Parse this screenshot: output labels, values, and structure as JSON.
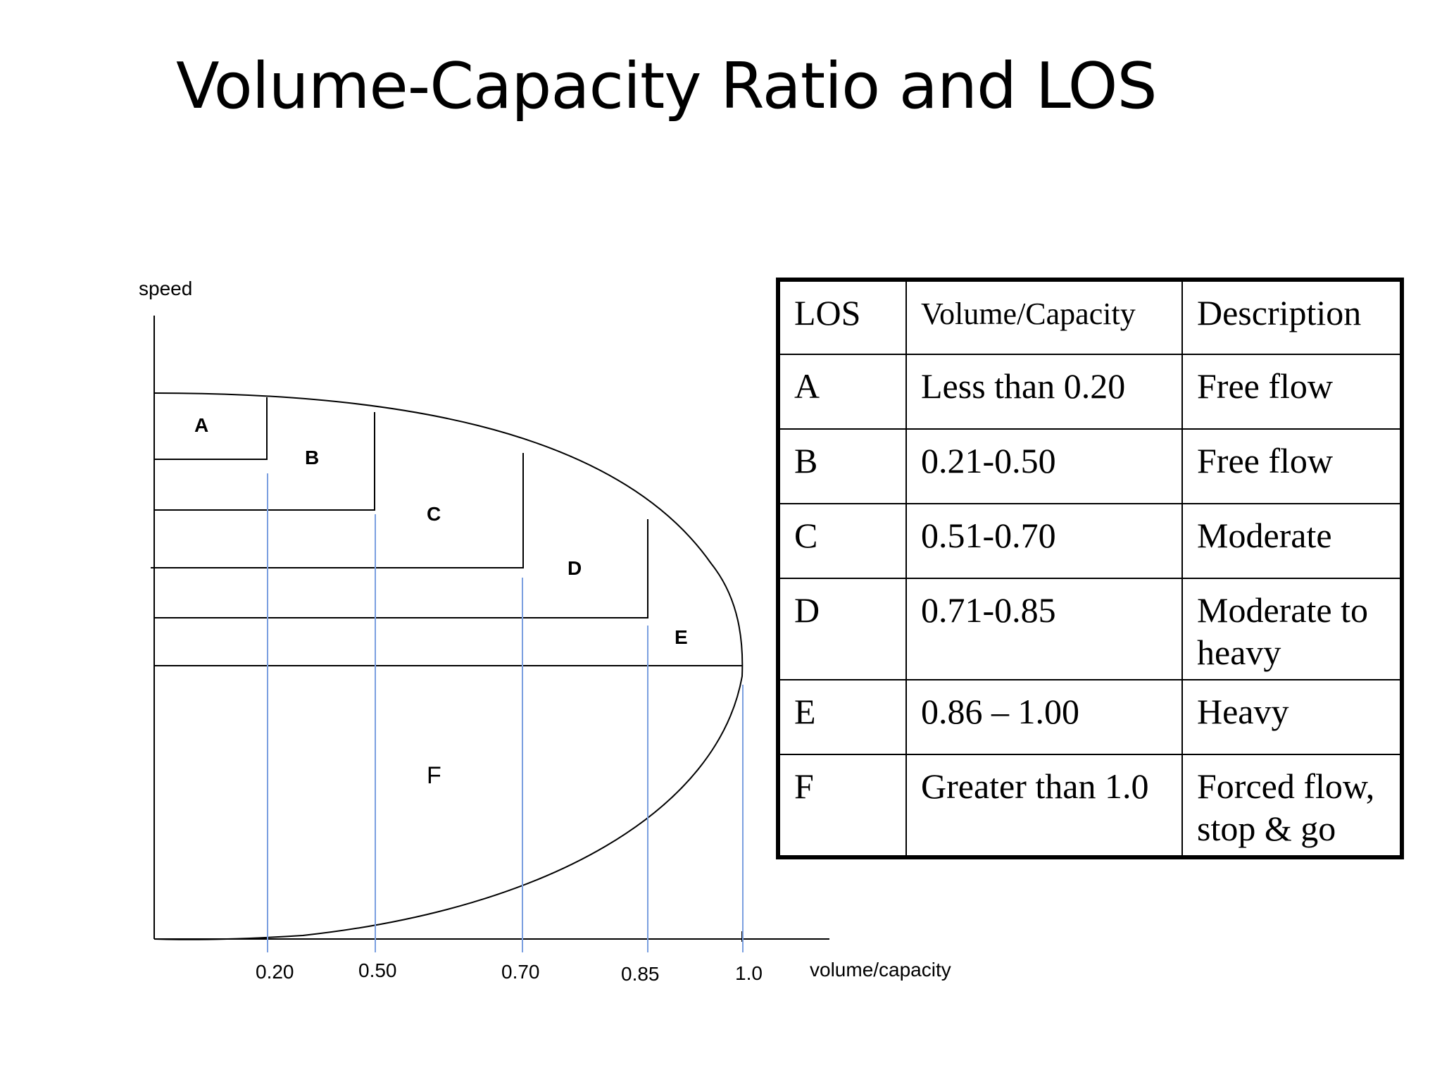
{
  "title": "Volume-Capacity Ratio and LOS",
  "diagram": {
    "y_axis_label": "speed",
    "x_axis_label": "volume/capacity",
    "tick_labels": [
      "0.20",
      "0.50",
      "0.70",
      "0.85",
      "1.0"
    ],
    "region_labels": {
      "A": "A",
      "B": "B",
      "C": "C",
      "D": "D",
      "E": "E",
      "F": "F"
    },
    "colors": {
      "curve": "#000000",
      "guide_lines": "#7b9fe0"
    }
  },
  "table": {
    "headers": {
      "los": "LOS",
      "vc": "Volume/Capacity",
      "desc": "Description"
    },
    "rows": [
      {
        "los": "A",
        "vc": "Less than 0.20",
        "desc": "Free flow"
      },
      {
        "los": "B",
        "vc": "0.21-0.50",
        "desc": "Free flow"
      },
      {
        "los": "C",
        "vc": "0.51-0.70",
        "desc": "Moderate"
      },
      {
        "los": "D",
        "vc": "0.71-0.85",
        "desc": "Moderate to heavy"
      },
      {
        "los": "E",
        "vc": "0.86 – 1.00",
        "desc": "Heavy"
      },
      {
        "los": "F",
        "vc": "Greater than 1.0",
        "desc": "Forced flow, stop & go"
      }
    ]
  }
}
